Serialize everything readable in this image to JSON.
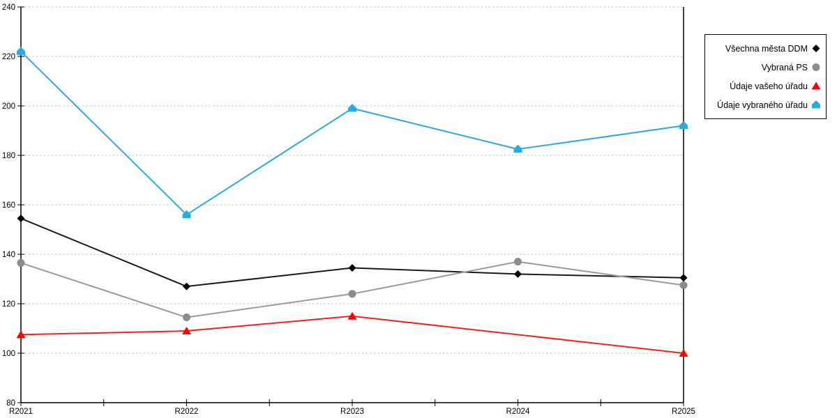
{
  "chart_data": {
    "type": "line",
    "title": "",
    "xlabel": "",
    "ylabel": "",
    "categories": [
      "R2021",
      "R2022",
      "R2023",
      "R2024",
      "R2025"
    ],
    "series": [
      {
        "name": "Všechna města DDM",
        "marker": "diamond",
        "line_color": "#1a1a1a",
        "marker_color": "#000000",
        "values": [
          154.5,
          127,
          134.5,
          132,
          130.5
        ],
        "markers_at": [
          true,
          true,
          true,
          true,
          true
        ]
      },
      {
        "name": "Vybraná PS",
        "marker": "circle",
        "line_color": "#9a9a9a",
        "marker_color": "#8c8c8c",
        "values": [
          136.5,
          114.5,
          124,
          137,
          127.5
        ],
        "markers_at": [
          true,
          true,
          true,
          true,
          true
        ]
      },
      {
        "name": "Údaje vašeho úřadu",
        "marker": "triangle",
        "line_color": "#f52020",
        "marker_color": "#ff0000",
        "values": [
          107.5,
          109,
          115,
          107.5,
          100
        ],
        "markers_at": [
          true,
          true,
          true,
          false,
          true
        ]
      },
      {
        "name": "Údaje vybraného úřadu",
        "marker": "house",
        "line_color": "#29abe2",
        "marker_color": "#29abe2",
        "values": [
          222,
          156,
          199,
          182.5,
          192
        ],
        "markers_at": [
          true,
          true,
          true,
          true,
          true
        ]
      }
    ],
    "ylim": [
      80,
      240
    ],
    "yticks": [
      80,
      100,
      120,
      140,
      160,
      180,
      200,
      220,
      240
    ],
    "grid": "horizontal-dotted",
    "grid_color": "#b5b5b5",
    "axis_color": "#000000",
    "legend_position": "top-right"
  }
}
